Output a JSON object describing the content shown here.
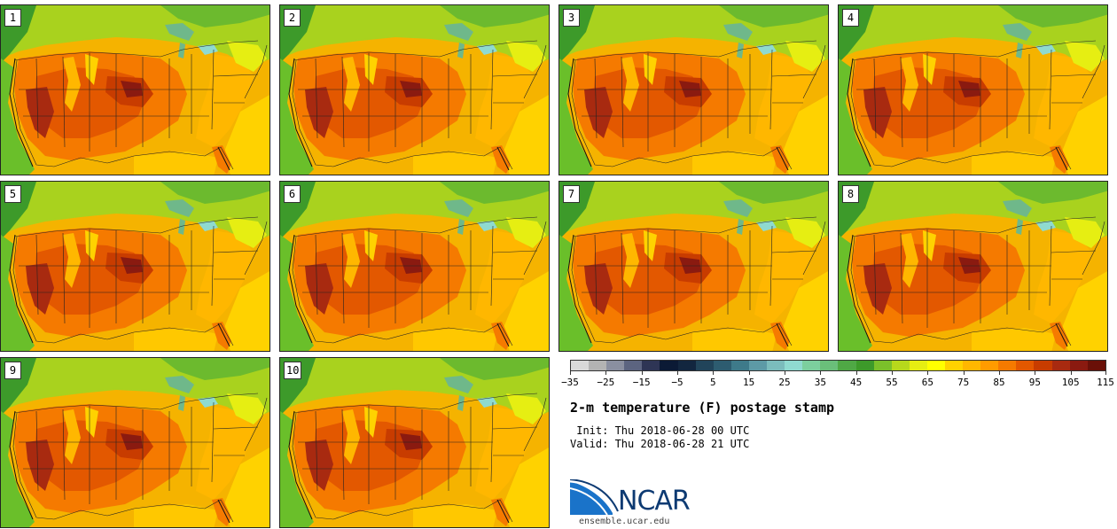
{
  "panels": [
    {
      "label": "1"
    },
    {
      "label": "2"
    },
    {
      "label": "3"
    },
    {
      "label": "4"
    },
    {
      "label": "5"
    },
    {
      "label": "6"
    },
    {
      "label": "7"
    },
    {
      "label": "8"
    },
    {
      "label": "9"
    },
    {
      "label": "10"
    }
  ],
  "colorbar": {
    "colors": [
      "#d9d9d9",
      "#b3b3b3",
      "#8a8fa0",
      "#5c6480",
      "#2e3555",
      "#0b1a35",
      "#12263f",
      "#21445a",
      "#2d5c70",
      "#3e7a8a",
      "#5d9aa6",
      "#7bbcbc",
      "#8fdad0",
      "#7ccf9e",
      "#6abf7a",
      "#4fa845",
      "#3d9a2a",
      "#7bc02a",
      "#b7d81c",
      "#e6ee12",
      "#ffff00",
      "#ffd200",
      "#ffb700",
      "#ff9b00",
      "#f57a00",
      "#e35800",
      "#c83c00",
      "#a82a10",
      "#8a1a10",
      "#6a1008"
    ],
    "ticks": [
      "−35",
      "−25",
      "−15",
      "−5",
      "5",
      "15",
      "25",
      "35",
      "45",
      "55",
      "65",
      "75",
      "85",
      "95",
      "105",
      "115"
    ]
  },
  "title": "2-m temperature (F) postage stamp",
  "init": " Init: Thu 2018-06-28 00 UTC",
  "valid": "Valid: Thu 2018-06-28 21 UTC",
  "logo_text": "NCAR",
  "site": "ensemble.ucar.edu"
}
